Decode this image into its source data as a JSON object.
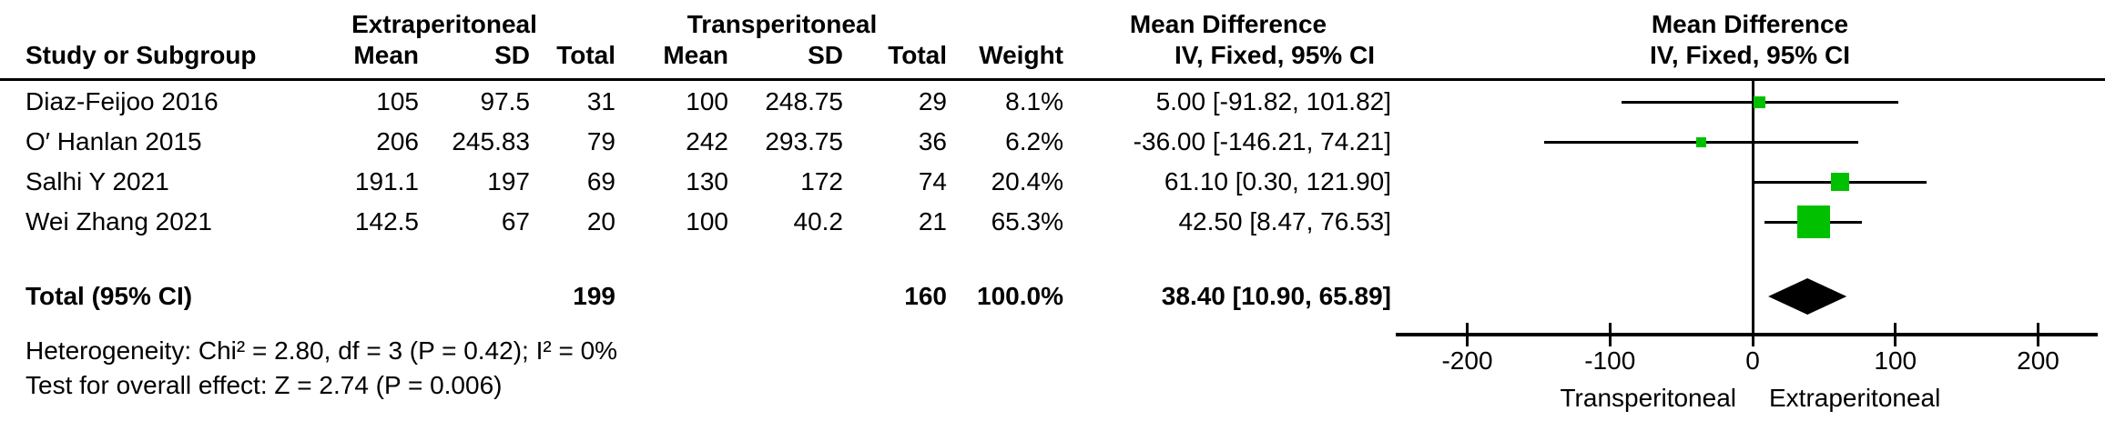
{
  "table": {
    "group_headers": {
      "extraperitoneal": "Extraperitoneal",
      "transperitoneal": "Transperitoneal",
      "mean_difference_stats": "Mean Difference",
      "mean_difference_plot": "Mean Difference"
    },
    "col_headers": {
      "study": "Study or Subgroup",
      "mean1": "Mean",
      "sd1": "SD",
      "total1": "Total",
      "mean2": "Mean",
      "sd2": "SD",
      "total2": "Total",
      "weight": "Weight",
      "ci_stats": "IV, Fixed, 95% CI",
      "ci_plot": "IV, Fixed, 95% CI"
    },
    "rows": [
      {
        "study": "Diaz-Feijoo 2016",
        "mean1": "105",
        "sd1": "97.5",
        "total1": "31",
        "mean2": "100",
        "sd2": "248.75",
        "total2": "29",
        "weight": "8.1%",
        "ci": "5.00 [-91.82, 101.82]"
      },
      {
        "study": "O′ Hanlan 2015",
        "mean1": "206",
        "sd1": "245.83",
        "total1": "79",
        "mean2": "242",
        "sd2": "293.75",
        "total2": "36",
        "weight": "6.2%",
        "ci": "-36.00 [-146.21, 74.21]"
      },
      {
        "study": "Salhi Y 2021",
        "mean1": "191.1",
        "sd1": "197",
        "total1": "69",
        "mean2": "130",
        "sd2": "172",
        "total2": "74",
        "weight": "20.4%",
        "ci": "61.10 [0.30, 121.90]"
      },
      {
        "study": "Wei Zhang 2021",
        "mean1": "142.5",
        "sd1": "67",
        "total1": "20",
        "mean2": "100",
        "sd2": "40.2",
        "total2": "21",
        "weight": "65.3%",
        "ci": "42.50 [8.47, 76.53]"
      }
    ],
    "total_row": {
      "label": "Total (95% CI)",
      "total1": "199",
      "total2": "160",
      "weight": "100.0%",
      "ci": "38.40 [10.90, 65.89]"
    },
    "footnotes": {
      "heterogeneity": "Heterogeneity: Chi² = 2.80, df = 3 (P = 0.42); I² = 0%",
      "overall_effect": "Test for overall effect: Z = 2.74 (P = 0.006)"
    }
  },
  "chart_data": {
    "type": "scatter",
    "subtype": "forest-plot",
    "title": "Mean Difference",
    "effect_measure": "IV, Fixed, 95% CI",
    "xlim": [
      -250,
      242
    ],
    "x_ticks": [
      -200,
      -100,
      0,
      100,
      200
    ],
    "xlabel_left": "Transperitoneal",
    "xlabel_right": "Extraperitoneal",
    "grid": false,
    "studies": [
      {
        "name": "Diaz-Feijoo 2016",
        "md": 5.0,
        "ci_low": -91.82,
        "ci_high": 101.82,
        "weight_pct": 8.1
      },
      {
        "name": "O′ Hanlan 2015",
        "md": -36.0,
        "ci_low": -146.21,
        "ci_high": 74.21,
        "weight_pct": 6.2
      },
      {
        "name": "Salhi Y 2021",
        "md": 61.1,
        "ci_low": 0.3,
        "ci_high": 121.9,
        "weight_pct": 20.4
      },
      {
        "name": "Wei Zhang 2021",
        "md": 42.5,
        "ci_low": 8.47,
        "ci_high": 76.53,
        "weight_pct": 65.3
      }
    ],
    "total": {
      "md": 38.4,
      "ci_low": 10.9,
      "ci_high": 65.89
    },
    "marker_color": "#00C000",
    "diamond_color": "#000000",
    "line_color": "#000000"
  }
}
